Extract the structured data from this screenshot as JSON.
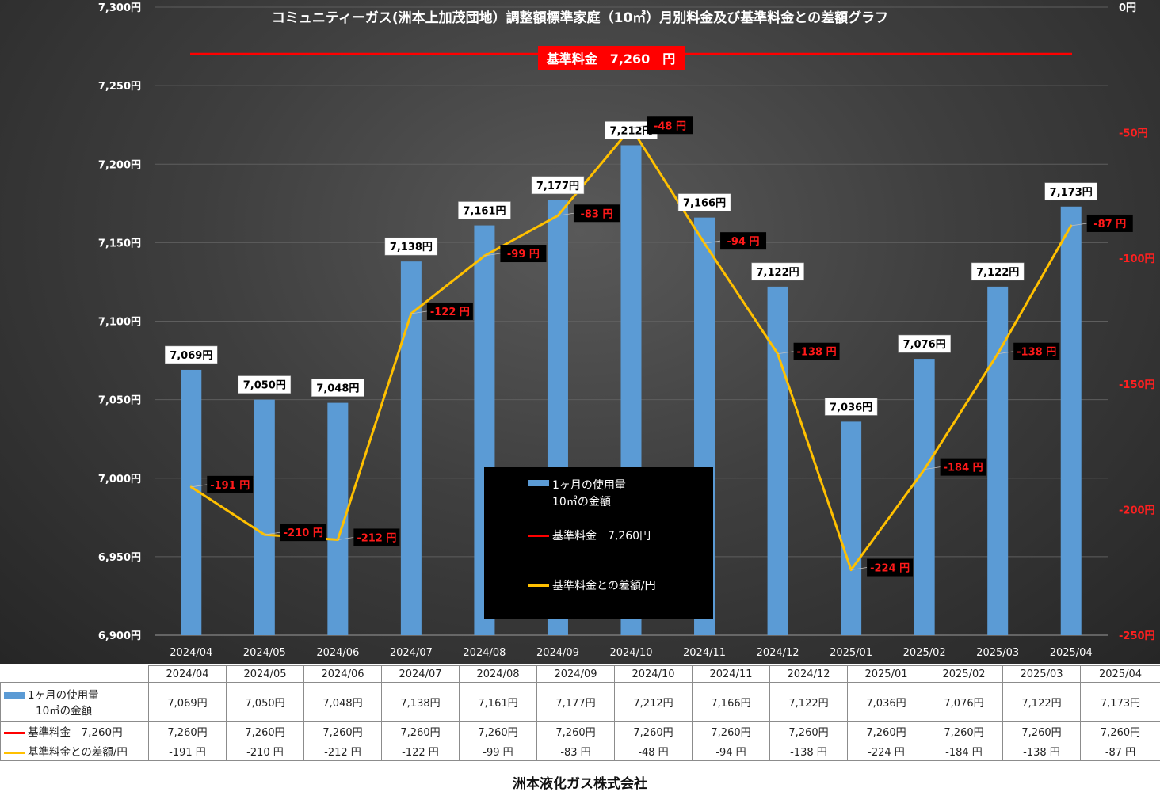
{
  "chart_data": {
    "type": "bar",
    "title": "コミュニティーガス(洲本上加茂団地）調整額標準家庭（10㎥）月別料金及び基準料金との差額グラフ",
    "categories": [
      "2024/04",
      "2024/05",
      "2024/06",
      "2024/07",
      "2024/08",
      "2024/09",
      "2024/10",
      "2024/11",
      "2024/12",
      "2025/01",
      "2025/02",
      "2025/03",
      "2025/04"
    ],
    "ylim": [
      6900,
      7300
    ],
    "y_ticks": [
      6900,
      6950,
      7000,
      7050,
      7100,
      7150,
      7200,
      7250,
      7300
    ],
    "y_tick_labels": [
      "6,900円",
      "6,950円",
      "7,000円",
      "7,050円",
      "7,100円",
      "7,150円",
      "7,200円",
      "7,250円",
      "7,300円"
    ],
    "y2lim": [
      -250,
      0
    ],
    "y2_ticks": [
      -250,
      -200,
      -150,
      -100,
      -50,
      0
    ],
    "y2_tick_labels": [
      "-250円",
      "-200円",
      "-150円",
      "-100円",
      "-50円",
      "0円"
    ],
    "grid": true,
    "legend_position": "bottom-center",
    "series": [
      {
        "name": "1ヶ月の使用量 10㎥の金額",
        "type": "bar",
        "axis": "left",
        "color": "#5b9bd5",
        "values": [
          7069,
          7050,
          7048,
          7138,
          7161,
          7177,
          7212,
          7166,
          7122,
          7036,
          7076,
          7122,
          7173
        ],
        "labels": [
          "7,069円",
          "7,050円",
          "7,048円",
          "7,138円",
          "7,161円",
          "7,177円",
          "7,212円",
          "7,166円",
          "7,122円",
          "7,036円",
          "7,076円",
          "7,122円",
          "7,173円"
        ]
      },
      {
        "name": "基準料金 7,260円",
        "type": "line",
        "axis": "left",
        "color": "#ff0000",
        "values": [
          7260,
          7260,
          7260,
          7260,
          7260,
          7260,
          7260,
          7260,
          7260,
          7260,
          7260,
          7260,
          7260
        ],
        "labels": [
          "7,260円",
          "7,260円",
          "7,260円",
          "7,260円",
          "7,260円",
          "7,260円",
          "7,260円",
          "7,260円",
          "7,260円",
          "7,260円",
          "7,260円",
          "7,260円",
          "7,260円"
        ]
      },
      {
        "name": "基準料金との差額/円",
        "type": "line",
        "axis": "right",
        "color": "#ffc000",
        "values": [
          -191,
          -210,
          -212,
          -122,
          -99,
          -83,
          -48,
          -94,
          -138,
          -224,
          -184,
          -138,
          -87
        ],
        "labels": [
          "-191 円",
          "-210 円",
          "-212 円",
          "-122 円",
          "-99 円",
          "-83 円",
          "-48 円",
          "-94 円",
          "-138 円",
          "-224 円",
          "-184 円",
          "-138 円",
          "-87 円"
        ]
      }
    ],
    "baseline_label": "基準料金　7,260　円",
    "legend": {
      "bar_line1": "1ヶ月の使用量",
      "bar_line2": "10㎥の金額",
      "red": "基準料金　7,260円",
      "yellow": "基準料金との差額/円"
    },
    "table": {
      "row1_label_1": "1ヶ月の使用量",
      "row1_label_2": "10㎥の金額",
      "row2_label": "基準料金　7,260円",
      "row3_label": "基準料金との差額/円"
    }
  },
  "footer": "洲本液化ガス株式会社"
}
